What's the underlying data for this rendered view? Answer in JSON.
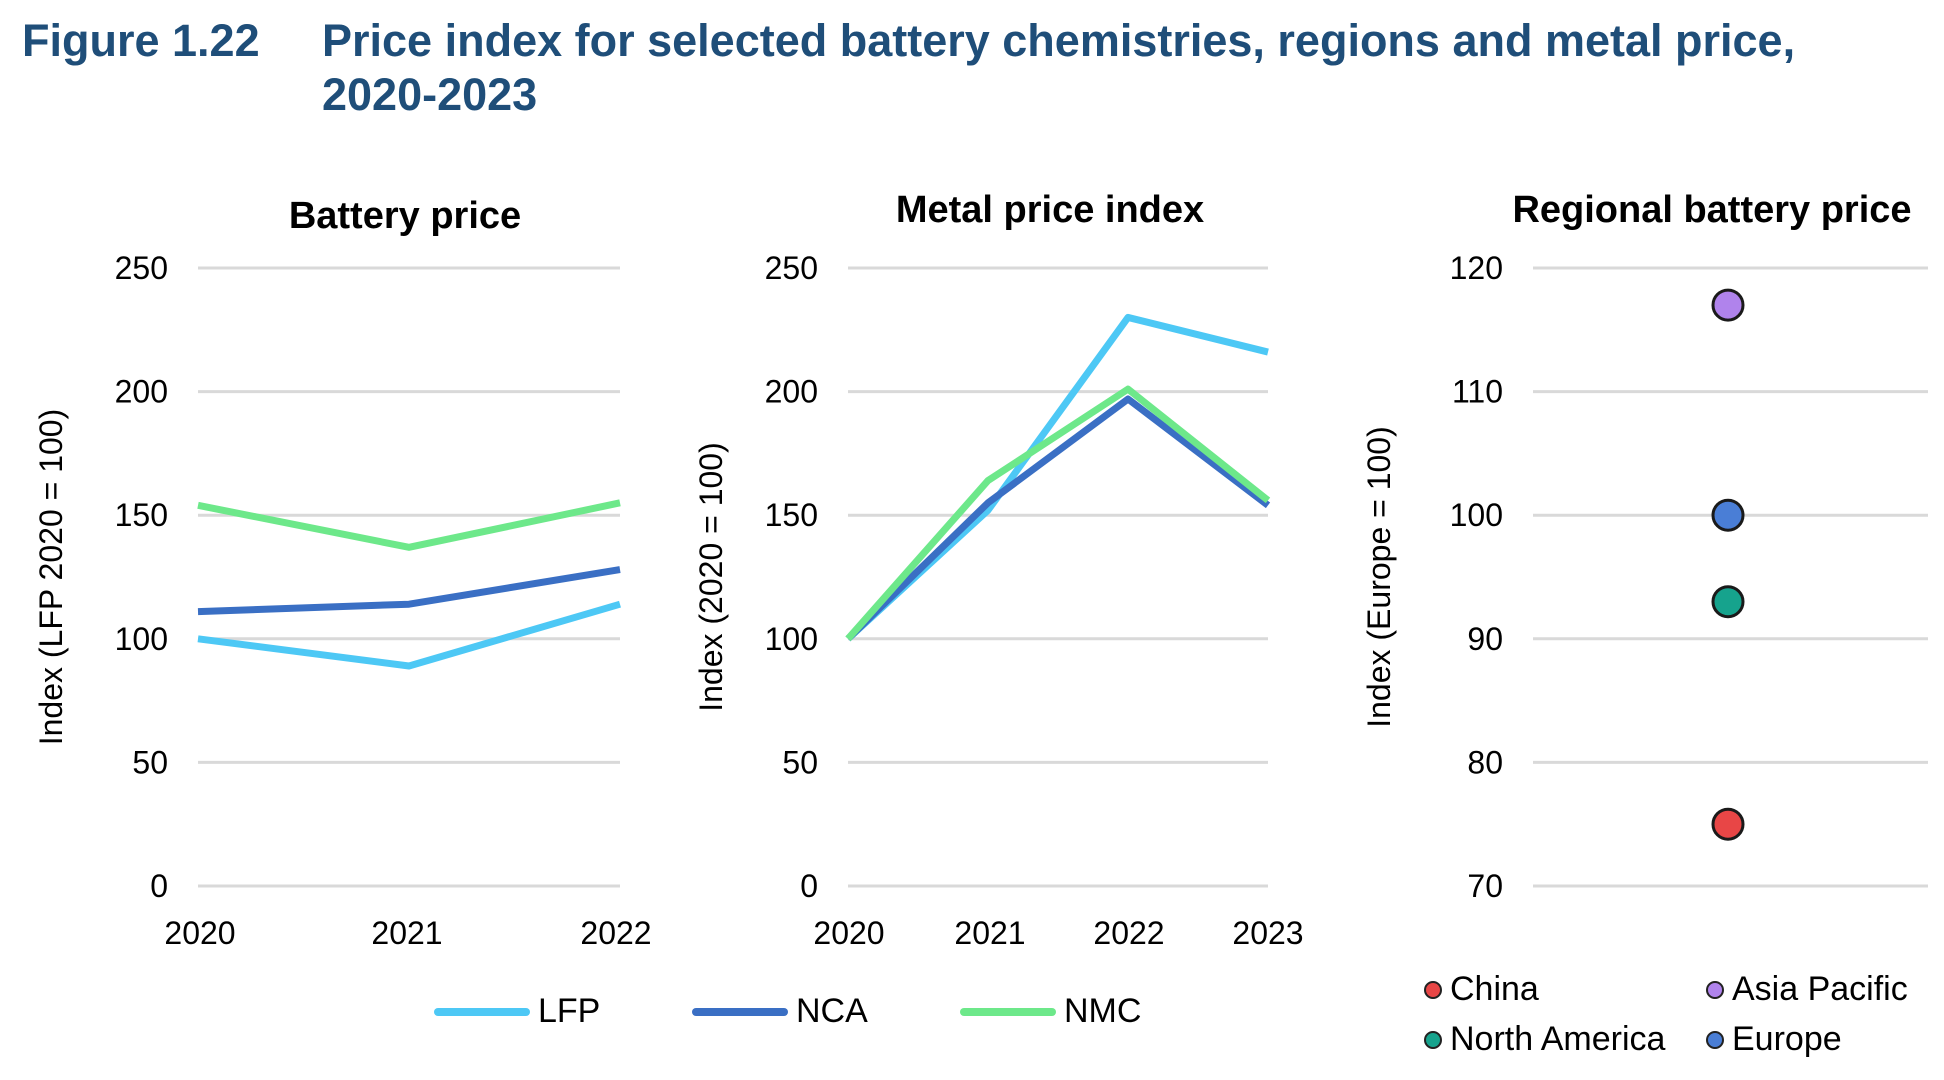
{
  "figure": {
    "number": "Figure 1.22",
    "title": "Price index for selected battery chemistries, regions and metal price, 2020-2023"
  },
  "colors": {
    "LFP": "#4dc8f5",
    "NCA": "#3a6fc4",
    "NMC": "#6de88a",
    "grid": "#d9d9d9"
  },
  "chart_data": [
    {
      "type": "line",
      "title": "Battery price",
      "ylabel": "Index (LFP 2020 = 100)",
      "xlabel": "",
      "categories": [
        "2020",
        "2021",
        "2022"
      ],
      "ylim": [
        0,
        250
      ],
      "yticks": [
        0,
        50,
        100,
        150,
        200,
        250
      ],
      "grid": true,
      "series": [
        {
          "name": "LFP",
          "color": "#4dc8f5",
          "values": [
            100,
            89,
            114
          ]
        },
        {
          "name": "NCA",
          "color": "#3a6fc4",
          "values": [
            111,
            114,
            128
          ]
        },
        {
          "name": "NMC",
          "color": "#6de88a",
          "values": [
            154,
            137,
            155
          ]
        }
      ]
    },
    {
      "type": "line",
      "title": "Metal price index",
      "ylabel": "Index (2020 = 100)",
      "xlabel": "",
      "categories": [
        "2020",
        "2021",
        "2022",
        "2023"
      ],
      "ylim": [
        0,
        250
      ],
      "yticks": [
        0,
        50,
        100,
        150,
        200,
        250
      ],
      "grid": true,
      "series": [
        {
          "name": "LFP",
          "color": "#4dc8f5",
          "values": [
            100,
            152,
            230,
            216
          ]
        },
        {
          "name": "NCA",
          "color": "#3a6fc4",
          "values": [
            100,
            155,
            197,
            154
          ]
        },
        {
          "name": "NMC",
          "color": "#6de88a",
          "values": [
            100,
            164,
            201,
            156
          ]
        }
      ],
      "legend": {
        "placement": "bottom",
        "items": [
          "LFP",
          "NCA",
          "NMC"
        ]
      }
    },
    {
      "type": "scatter",
      "title": "Regional battery price",
      "ylabel": "Index (Europe = 100)",
      "xlabel": "",
      "ylim": [
        70,
        120
      ],
      "yticks": [
        70,
        80,
        90,
        100,
        110,
        120
      ],
      "grid": true,
      "points": [
        {
          "name": "China",
          "color": "#e84646",
          "value": 75
        },
        {
          "name": "North America",
          "color": "#16a38d",
          "value": 93
        },
        {
          "name": "Europe",
          "color": "#4a7ed6",
          "value": 100
        },
        {
          "name": "Asia Pacific",
          "color": "#b083ec",
          "value": 117
        }
      ],
      "legend": {
        "placement": "bottom",
        "items": [
          "China",
          "Asia Pacific",
          "North America",
          "Europe"
        ]
      }
    }
  ]
}
